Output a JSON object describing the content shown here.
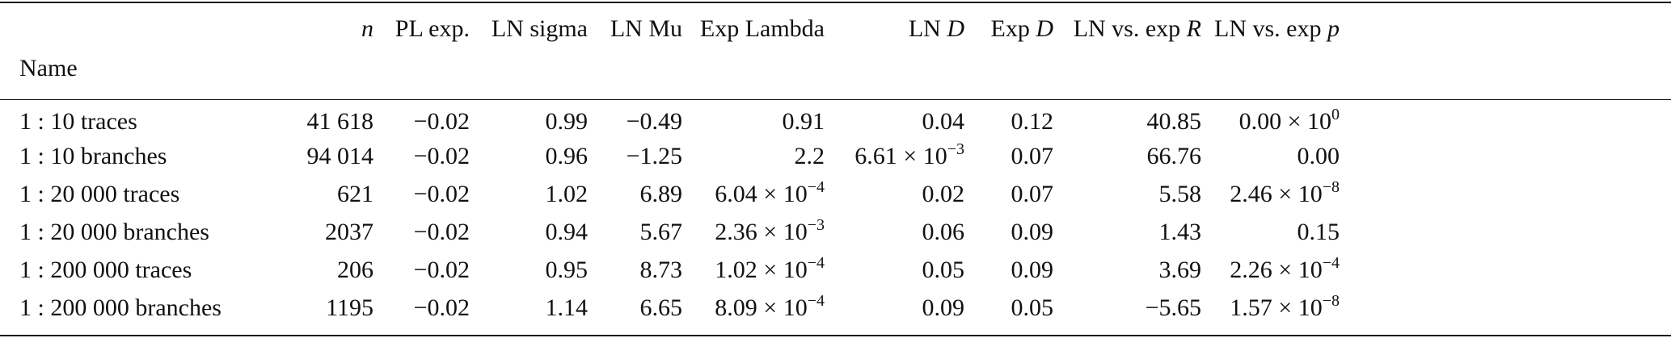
{
  "table": {
    "columns": [
      {
        "label": "n",
        "italic": true
      },
      {
        "label": "PL exp."
      },
      {
        "label": "LN sigma"
      },
      {
        "label": "LN Mu"
      },
      {
        "label": "Exp Lambda"
      },
      {
        "label": "LN ",
        "italic_suffix": "D"
      },
      {
        "label": "Exp ",
        "italic_suffix": "D"
      },
      {
        "label": "LN vs. exp ",
        "italic_suffix": "R"
      },
      {
        "label": "LN vs. exp ",
        "italic_suffix": "p"
      }
    ],
    "name_header": "Name",
    "rows": [
      {
        "name": "1 : 10 traces",
        "n": "41 618",
        "pl": "−0.02",
        "sigma": "0.99",
        "mu": "−0.49",
        "lambda": {
          "m": "0.91"
        },
        "lnD": {
          "m": "0.04"
        },
        "expD": "0.12",
        "R": "40.85",
        "p": {
          "m": "0.00 × 10",
          "e": "0"
        }
      },
      {
        "name": "1 : 10 branches",
        "n": "94 014",
        "pl": "−0.02",
        "sigma": "0.96",
        "mu": "−1.25",
        "lambda": {
          "m": "2.2"
        },
        "lnD": {
          "m": "6.61 × 10",
          "e": "−3"
        },
        "expD": "0.07",
        "R": "66.76",
        "p": {
          "m": "0.00"
        }
      },
      {
        "name": "1 : 20 000 traces",
        "n": "621",
        "pl": "−0.02",
        "sigma": "1.02",
        "mu": "6.89",
        "lambda": {
          "m": "6.04 × 10",
          "e": "−4"
        },
        "lnD": {
          "m": "0.02"
        },
        "expD": "0.07",
        "R": "5.58",
        "p": {
          "m": "2.46 × 10",
          "e": "−8"
        }
      },
      {
        "name": "1 : 20 000 branches",
        "n": "2037",
        "pl": "−0.02",
        "sigma": "0.94",
        "mu": "5.67",
        "lambda": {
          "m": "2.36 × 10",
          "e": "−3"
        },
        "lnD": {
          "m": "0.06"
        },
        "expD": "0.09",
        "R": "1.43",
        "p": {
          "m": "0.15"
        }
      },
      {
        "name": "1 : 200 000 traces",
        "n": "206",
        "pl": "−0.02",
        "sigma": "0.95",
        "mu": "8.73",
        "lambda": {
          "m": "1.02 × 10",
          "e": "−4"
        },
        "lnD": {
          "m": "0.05"
        },
        "expD": "0.09",
        "R": "3.69",
        "p": {
          "m": "2.26 × 10",
          "e": "−4"
        }
      },
      {
        "name": "1 : 200 000 branches",
        "n": "1195",
        "pl": "−0.02",
        "sigma": "1.14",
        "mu": "6.65",
        "lambda": {
          "m": "8.09 × 10",
          "e": "−4"
        },
        "lnD": {
          "m": "0.09"
        },
        "expD": "0.05",
        "R": "−5.65",
        "p": {
          "m": "1.57 × 10",
          "e": "−8"
        }
      }
    ]
  }
}
